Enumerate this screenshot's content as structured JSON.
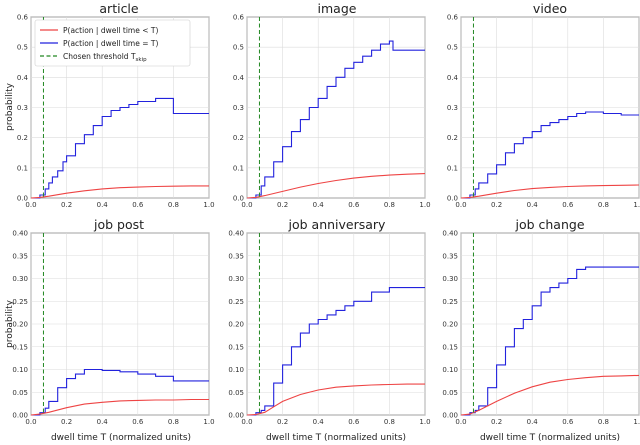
{
  "chart_data": [
    {
      "type": "line",
      "title": "article",
      "xlabel": "",
      "ylabel": "probability",
      "xlim": [
        0,
        1
      ],
      "ylim": [
        0,
        0.6
      ],
      "x_ticks": [
        "0.0",
        "0.2",
        "0.4",
        "0.6",
        "0.8",
        "1.0"
      ],
      "y_ticks": [
        "0.0",
        "0.1",
        "0.2",
        "0.3",
        "0.4",
        "0.5",
        "0.6"
      ],
      "grid": true,
      "threshold": 0.07,
      "legend_position": "top-left",
      "series": [
        {
          "name": "P(action | dwell time = T)",
          "color": "#2222dd",
          "step": true,
          "x": [
            0,
            0.05,
            0.08,
            0.1,
            0.12,
            0.15,
            0.18,
            0.2,
            0.25,
            0.3,
            0.35,
            0.4,
            0.45,
            0.5,
            0.55,
            0.6,
            0.65,
            0.7,
            0.8,
            0.9,
            1.0
          ],
          "y": [
            0,
            0.01,
            0.03,
            0.05,
            0.07,
            0.09,
            0.12,
            0.14,
            0.18,
            0.21,
            0.24,
            0.27,
            0.29,
            0.3,
            0.31,
            0.32,
            0.32,
            0.33,
            0.28,
            0.28,
            0.28
          ]
        },
        {
          "name": "P(action | dwell time < T)",
          "color": "#ee4444",
          "step": false,
          "x": [
            0,
            0.05,
            0.1,
            0.2,
            0.3,
            0.4,
            0.5,
            0.6,
            0.7,
            0.8,
            0.9,
            1.0
          ],
          "y": [
            0,
            0.002,
            0.006,
            0.016,
            0.024,
            0.03,
            0.034,
            0.036,
            0.038,
            0.039,
            0.04,
            0.04
          ]
        }
      ]
    },
    {
      "type": "line",
      "title": "image",
      "xlabel": "",
      "ylabel": "",
      "xlim": [
        0,
        1
      ],
      "ylim": [
        0,
        0.6
      ],
      "x_ticks": [
        "0.0",
        "0.2",
        "0.4",
        "0.6",
        "0.8",
        "1.0"
      ],
      "y_ticks": [
        "0.0",
        "0.1",
        "0.2",
        "0.3",
        "0.4",
        "0.5",
        "0.6"
      ],
      "grid": true,
      "threshold": 0.07,
      "series": [
        {
          "name": "P(action | dwell time = T)",
          "color": "#2222dd",
          "step": true,
          "x": [
            0,
            0.05,
            0.08,
            0.1,
            0.15,
            0.2,
            0.25,
            0.3,
            0.35,
            0.4,
            0.45,
            0.5,
            0.55,
            0.6,
            0.65,
            0.7,
            0.75,
            0.8,
            0.82,
            0.9,
            1.0
          ],
          "y": [
            0,
            0.01,
            0.04,
            0.07,
            0.12,
            0.17,
            0.22,
            0.26,
            0.3,
            0.33,
            0.37,
            0.4,
            0.43,
            0.45,
            0.47,
            0.49,
            0.51,
            0.52,
            0.49,
            0.49,
            0.49
          ]
        },
        {
          "name": "P(action | dwell time < T)",
          "color": "#ee4444",
          "step": false,
          "x": [
            0,
            0.05,
            0.1,
            0.2,
            0.3,
            0.4,
            0.5,
            0.6,
            0.7,
            0.8,
            0.9,
            1.0
          ],
          "y": [
            0,
            0.002,
            0.008,
            0.022,
            0.036,
            0.048,
            0.058,
            0.066,
            0.072,
            0.076,
            0.079,
            0.081
          ]
        }
      ]
    },
    {
      "type": "line",
      "title": "video",
      "xlabel": "",
      "ylabel": "",
      "xlim": [
        0,
        1
      ],
      "ylim": [
        0,
        0.6
      ],
      "x_ticks": [
        "0.0",
        "0.2",
        "0.4",
        "0.6",
        "0.8",
        "1.0"
      ],
      "y_ticks": [
        "0.0",
        "0.1",
        "0.2",
        "0.3",
        "0.4",
        "0.5",
        "0.6"
      ],
      "grid": true,
      "threshold": 0.07,
      "series": [
        {
          "name": "P(action | dwell time = T)",
          "color": "#2222dd",
          "step": true,
          "x": [
            0,
            0.05,
            0.08,
            0.1,
            0.15,
            0.2,
            0.25,
            0.3,
            0.35,
            0.4,
            0.45,
            0.5,
            0.55,
            0.6,
            0.65,
            0.7,
            0.8,
            0.9,
            1.0
          ],
          "y": [
            0,
            0.01,
            0.03,
            0.05,
            0.08,
            0.11,
            0.15,
            0.18,
            0.2,
            0.22,
            0.24,
            0.25,
            0.26,
            0.27,
            0.28,
            0.285,
            0.28,
            0.275,
            0.275
          ]
        },
        {
          "name": "P(action | dwell time < T)",
          "color": "#ee4444",
          "step": false,
          "x": [
            0,
            0.05,
            0.1,
            0.2,
            0.3,
            0.4,
            0.5,
            0.6,
            0.7,
            0.8,
            0.9,
            1.0
          ],
          "y": [
            0,
            0.002,
            0.006,
            0.016,
            0.025,
            0.031,
            0.035,
            0.038,
            0.04,
            0.041,
            0.042,
            0.043
          ]
        }
      ]
    },
    {
      "type": "line",
      "title": "job post",
      "xlabel": "dwell time T (normalized units)",
      "ylabel": "probability",
      "xlim": [
        0,
        1
      ],
      "ylim": [
        0,
        0.4
      ],
      "x_ticks": [
        "0.0",
        "0.2",
        "0.4",
        "0.6",
        "0.8",
        "1.0"
      ],
      "y_ticks": [
        "0.00",
        "0.05",
        "0.10",
        "0.15",
        "0.20",
        "0.25",
        "0.30",
        "0.35",
        "0.40"
      ],
      "grid": true,
      "threshold": 0.07,
      "series": [
        {
          "name": "P(action | dwell time = T)",
          "color": "#2222dd",
          "step": true,
          "x": [
            0,
            0.05,
            0.08,
            0.1,
            0.15,
            0.2,
            0.25,
            0.3,
            0.35,
            0.4,
            0.5,
            0.6,
            0.7,
            0.8,
            0.9,
            1.0
          ],
          "y": [
            0,
            0.005,
            0.015,
            0.03,
            0.06,
            0.08,
            0.09,
            0.1,
            0.1,
            0.098,
            0.095,
            0.09,
            0.085,
            0.075,
            0.075,
            0.075
          ]
        },
        {
          "name": "P(action | dwell time < T)",
          "color": "#ee4444",
          "step": false,
          "x": [
            0,
            0.05,
            0.1,
            0.2,
            0.3,
            0.4,
            0.5,
            0.6,
            0.7,
            0.8,
            0.9,
            1.0
          ],
          "y": [
            0,
            0.002,
            0.006,
            0.016,
            0.024,
            0.028,
            0.031,
            0.032,
            0.033,
            0.033,
            0.034,
            0.034
          ]
        }
      ]
    },
    {
      "type": "line",
      "title": "job anniversary",
      "xlabel": "dwell time T (normalized units)",
      "ylabel": "",
      "xlim": [
        0,
        1
      ],
      "ylim": [
        0,
        0.4
      ],
      "x_ticks": [
        "0.0",
        "0.2",
        "0.4",
        "0.6",
        "0.8",
        "1.0"
      ],
      "y_ticks": [
        "0.00",
        "0.05",
        "0.10",
        "0.15",
        "0.20",
        "0.25",
        "0.30",
        "0.35",
        "0.40"
      ],
      "grid": true,
      "threshold": 0.07,
      "series": [
        {
          "name": "P(action | dwell time = T)",
          "color": "#2222dd",
          "step": true,
          "x": [
            0,
            0.05,
            0.08,
            0.1,
            0.15,
            0.2,
            0.25,
            0.3,
            0.35,
            0.4,
            0.45,
            0.5,
            0.55,
            0.6,
            0.65,
            0.7,
            0.8,
            0.9,
            1.0
          ],
          "y": [
            0,
            0.005,
            0.01,
            0.02,
            0.07,
            0.11,
            0.15,
            0.18,
            0.2,
            0.21,
            0.22,
            0.23,
            0.24,
            0.25,
            0.25,
            0.27,
            0.28,
            0.28,
            0.28
          ]
        },
        {
          "name": "P(action | dwell time < T)",
          "color": "#ee4444",
          "step": false,
          "x": [
            0,
            0.05,
            0.1,
            0.15,
            0.2,
            0.3,
            0.4,
            0.5,
            0.6,
            0.7,
            0.8,
            0.9,
            1.0
          ],
          "y": [
            0,
            0.001,
            0.006,
            0.018,
            0.03,
            0.045,
            0.055,
            0.061,
            0.064,
            0.066,
            0.067,
            0.068,
            0.068
          ]
        }
      ]
    },
    {
      "type": "line",
      "title": "job change",
      "xlabel": "dwell time T (normalized units)",
      "ylabel": "",
      "xlim": [
        0,
        1
      ],
      "ylim": [
        0,
        0.4
      ],
      "x_ticks": [
        "0.0",
        "0.2",
        "0.4",
        "0.6",
        "0.8",
        "1.0"
      ],
      "y_ticks": [
        "0.00",
        "0.05",
        "0.10",
        "0.15",
        "0.20",
        "0.25",
        "0.30",
        "0.35",
        "0.40"
      ],
      "grid": true,
      "threshold": 0.07,
      "series": [
        {
          "name": "P(action | dwell time = T)",
          "color": "#2222dd",
          "step": true,
          "x": [
            0,
            0.05,
            0.08,
            0.1,
            0.15,
            0.2,
            0.25,
            0.3,
            0.35,
            0.4,
            0.45,
            0.5,
            0.55,
            0.6,
            0.65,
            0.7,
            0.8,
            0.9,
            1.0
          ],
          "y": [
            0,
            0.005,
            0.01,
            0.02,
            0.06,
            0.11,
            0.15,
            0.19,
            0.21,
            0.24,
            0.27,
            0.28,
            0.29,
            0.3,
            0.32,
            0.325,
            0.325,
            0.325,
            0.325
          ]
        },
        {
          "name": "P(action | dwell time < T)",
          "color": "#ee4444",
          "step": false,
          "x": [
            0,
            0.05,
            0.1,
            0.15,
            0.2,
            0.3,
            0.4,
            0.5,
            0.6,
            0.7,
            0.8,
            0.9,
            1.0
          ],
          "y": [
            0,
            0.002,
            0.01,
            0.02,
            0.03,
            0.048,
            0.062,
            0.072,
            0.078,
            0.082,
            0.085,
            0.086,
            0.087
          ]
        }
      ]
    }
  ],
  "legend": {
    "items": [
      {
        "label": "P(action | dwell time < T)",
        "color": "#ee4444",
        "style": "solid"
      },
      {
        "label": "P(action | dwell time = T)",
        "color": "#2222dd",
        "style": "solid"
      },
      {
        "label": "Chosen threshold T",
        "subscript": "skip",
        "color": "#228822",
        "style": "dashed"
      }
    ]
  },
  "colors": {
    "threshold": "#228822",
    "frame": "#444444",
    "grid": "#dcdcdc"
  }
}
